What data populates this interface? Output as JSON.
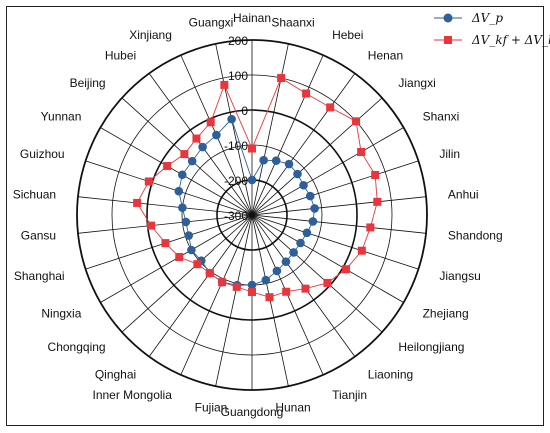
{
  "chart_data": {
    "type": "radar",
    "categories": [
      "Hainan",
      "Shaanxi",
      "Hebei",
      "Henan",
      "Jiangxi",
      "Shanxi",
      "Jilin",
      "Anhui",
      "Shandong",
      "Jiangsu",
      "Zhejiang",
      "Heilongjiang",
      "Liaoning",
      "Tianjin",
      "Hunan",
      "Guangdong",
      "Fujian",
      "Inner Mongolia",
      "Qinghai",
      "Chongqing",
      "Ningxia",
      "Shanghai",
      "Gansu",
      "Sichuan",
      "Guizhou",
      "Yunnan",
      "Beijing",
      "Hubei",
      "Xinjiang",
      "Guangxi"
    ],
    "rlim": [
      -300,
      200
    ],
    "rticks": [
      -300,
      -200,
      -100,
      0,
      100,
      200
    ],
    "rtick_labels": [
      "-300",
      "-200",
      "-100",
      "0",
      "100",
      "200"
    ],
    "grid": true,
    "legend_position": "top-right",
    "series": [
      {
        "name": "ΔV_p",
        "color": "#2e5f99",
        "marker": "circle",
        "values": [
          -200,
          -140,
          -130,
          -120,
          -125,
          -130,
          -125,
          -120,
          -125,
          -135,
          -140,
          -140,
          -135,
          -125,
          -110,
          -100,
          -95,
          -90,
          -95,
          -105,
          -100,
          -110,
          -110,
          -100,
          -80,
          -70,
          -70,
          -60,
          -50,
          -20
        ]
      },
      {
        "name": "ΔV_kf + ΔV_k",
        "color": "#e8363c",
        "marker": "square",
        "values": [
          -110,
          100,
          80,
          80,
          100,
          60,
          70,
          60,
          40,
          30,
          10,
          -10,
          -40,
          -60,
          -60,
          -80,
          -90,
          -90,
          -95,
          -90,
          -60,
          -40,
          -10,
          30,
          10,
          -20,
          -40,
          -30,
          -10,
          80
        ]
      }
    ]
  }
}
